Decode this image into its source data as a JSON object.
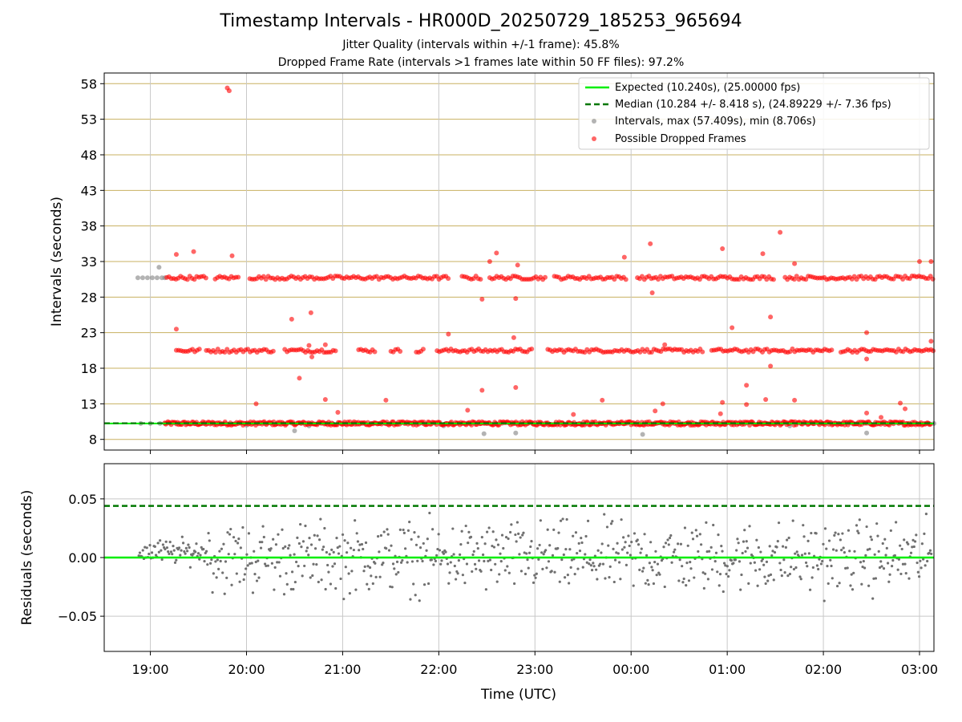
{
  "title": "Timestamp Intervals - HR000D_20250729_185253_965694",
  "subtitle_jitter": "Jitter Quality (intervals within +/-1 frame): 45.8%",
  "subtitle_dropped": "Dropped Frame Rate (intervals >1 frames late within 50 FF files): 97.2%",
  "colors": {
    "expected": "#00ee00",
    "median": "#007700",
    "intervals": "#808080",
    "dropped": "#ff0000",
    "grid_top": "#c8b060",
    "grid": "#c8c8c8"
  },
  "chart_data": [
    {
      "type": "scatter",
      "ylabel": "Intervals (seconds)",
      "ylim": [
        6.5,
        59.5
      ],
      "yticks": [
        "8",
        "13",
        "18",
        "23",
        "28",
        "33",
        "38",
        "43",
        "48",
        "53",
        "58"
      ],
      "grid": true,
      "legend_position": "top-right",
      "legend": [
        "Expected (10.240s), (25.00000 fps)",
        "Median (10.284 +/- 8.418 s), (24.89229 +/- 7.36 fps)",
        "Intervals, max (57.409s), min (8.706s)",
        "Possible Dropped Frames"
      ],
      "expected_interval": 10.24,
      "median_interval": 10.284,
      "interval_bands": [
        10.24,
        20.48,
        30.72
      ],
      "outliers": [
        [
          19.8,
          57.4
        ],
        [
          19.82,
          57.0
        ],
        [
          19.27,
          34.0
        ],
        [
          19.45,
          34.4
        ],
        [
          19.85,
          33.8
        ],
        [
          19.27,
          23.5
        ],
        [
          20.47,
          24.9
        ],
        [
          20.67,
          25.8
        ],
        [
          20.55,
          16.6
        ],
        [
          20.82,
          21.3
        ],
        [
          20.65,
          21.2
        ],
        [
          20.68,
          19.6
        ],
        [
          20.1,
          13.0
        ],
        [
          20.82,
          13.6
        ],
        [
          20.95,
          11.8
        ],
        [
          21.45,
          13.5
        ],
        [
          22.1,
          22.8
        ],
        [
          22.3,
          12.1
        ],
        [
          22.45,
          14.9
        ],
        [
          22.6,
          34.2
        ],
        [
          22.45,
          27.7
        ],
        [
          22.8,
          27.8
        ],
        [
          22.8,
          15.3
        ],
        [
          22.78,
          22.3
        ],
        [
          22.82,
          32.5
        ],
        [
          22.53,
          33.0
        ],
        [
          23.4,
          11.5
        ],
        [
          23.7,
          13.5
        ],
        [
          23.93,
          33.6
        ],
        [
          24.2,
          35.5
        ],
        [
          24.22,
          28.6
        ],
        [
          24.25,
          12.0
        ],
        [
          24.33,
          13.0
        ],
        [
          24.35,
          21.3
        ],
        [
          24.95,
          34.8
        ],
        [
          24.95,
          13.2
        ],
        [
          24.93,
          11.6
        ],
        [
          25.05,
          23.7
        ],
        [
          25.2,
          12.9
        ],
        [
          25.2,
          15.6
        ],
        [
          25.37,
          34.1
        ],
        [
          25.45,
          25.2
        ],
        [
          25.45,
          18.3
        ],
        [
          25.55,
          37.1
        ],
        [
          25.4,
          13.6
        ],
        [
          25.7,
          32.7
        ],
        [
          25.7,
          13.5
        ],
        [
          26.45,
          23.0
        ],
        [
          26.45,
          19.3
        ],
        [
          26.45,
          11.7
        ],
        [
          26.6,
          11.1
        ],
        [
          26.8,
          13.1
        ],
        [
          26.85,
          12.3
        ],
        [
          27.0,
          33.0
        ],
        [
          27.12,
          33.0
        ],
        [
          27.12,
          21.8
        ]
      ],
      "gray_points": [
        [
          18.87,
          30.72
        ],
        [
          18.92,
          30.72
        ],
        [
          18.97,
          30.72
        ],
        [
          19.02,
          30.72
        ],
        [
          19.07,
          30.72
        ],
        [
          19.12,
          30.72
        ],
        [
          19.15,
          30.72
        ],
        [
          19.09,
          32.2
        ],
        [
          18.9,
          10.24
        ],
        [
          19.0,
          10.24
        ],
        [
          19.1,
          10.24
        ],
        [
          19.15,
          10.24
        ],
        [
          20.5,
          9.2
        ],
        [
          20.65,
          9.9
        ],
        [
          22.05,
          9.9
        ],
        [
          22.47,
          8.8
        ],
        [
          22.8,
          8.9
        ],
        [
          24.12,
          8.7
        ],
        [
          25.65,
          9.9
        ],
        [
          26.45,
          8.9
        ],
        [
          27.1,
          10.24
        ],
        [
          27.15,
          10.24
        ],
        [
          20.0,
          10.0
        ]
      ]
    },
    {
      "type": "scatter",
      "xlabel": "Time (UTC)",
      "ylabel": "Residuals (seconds)",
      "ylim": [
        -0.08,
        0.08
      ],
      "yticks": [
        "−0.05",
        "0.00",
        "0.05"
      ],
      "xticks": [
        "19:00",
        "20:00",
        "21:00",
        "22:00",
        "23:00",
        "00:00",
        "01:00",
        "02:00",
        "03:00"
      ],
      "median_residual": 0.044,
      "expected_residual": 0.0,
      "residual_spread": 0.08
    }
  ]
}
